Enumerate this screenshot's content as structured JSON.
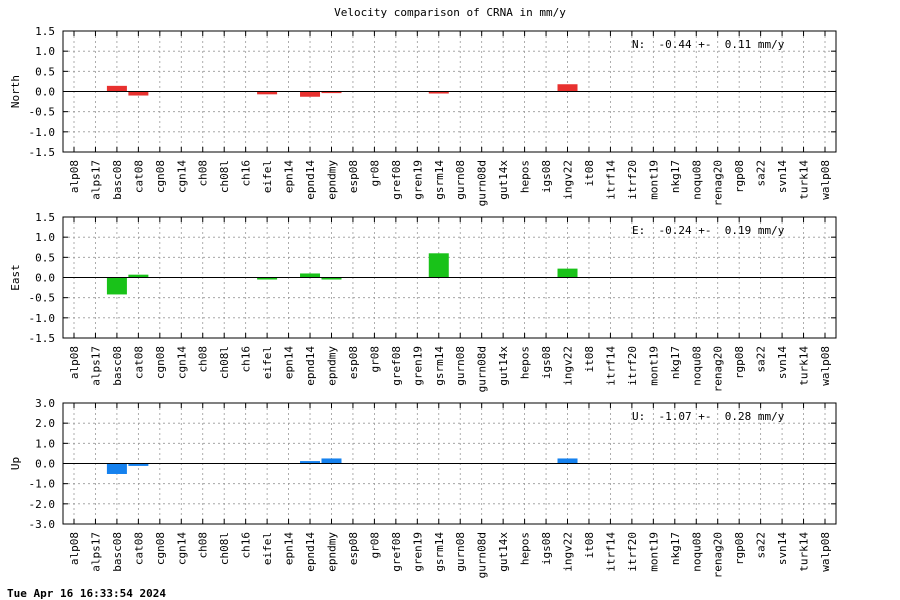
{
  "title": "Velocity comparison of CRNA in mm/y",
  "timestamp": "Tue Apr 16 16:33:54 2024",
  "chart_data": [
    {
      "type": "bar",
      "component": "North",
      "ylabel": "North",
      "ylim": [
        -1.5,
        1.5
      ],
      "yticks": [
        "1.5",
        "1.0",
        "0.5",
        "0.0",
        "-0.5",
        "-1.0",
        "-1.5"
      ],
      "annotation": "N:  -0.44 +-  0.11 mm/y",
      "color": "#e8312f",
      "grid": true,
      "categories": [
        "alp08",
        "alps17",
        "basc08",
        "cat08",
        "cgn08",
        "cgn14",
        "ch08",
        "ch08l",
        "ch16",
        "eifel",
        "epn14",
        "epnd14",
        "epndmy",
        "esp08",
        "gr08",
        "gref08",
        "gren19",
        "gsrm14",
        "gurn08",
        "gurn08d",
        "gut14x",
        "hepos",
        "igs08",
        "ingv22",
        "it08",
        "itrf14",
        "itrf20",
        "mont19",
        "nkg17",
        "noqu08",
        "renag20",
        "rgp08",
        "sa22",
        "svn14",
        "turk14",
        "walp08"
      ],
      "values": [
        0,
        0,
        0.14,
        -0.1,
        0,
        0,
        0,
        0,
        0,
        -0.07,
        0,
        -0.13,
        -0.04,
        0,
        0,
        0,
        0,
        -0.05,
        0,
        0,
        0,
        0,
        0,
        0.18,
        0,
        0,
        0,
        0,
        0,
        0,
        0,
        0,
        0,
        0,
        0,
        0
      ]
    },
    {
      "type": "bar",
      "component": "East",
      "ylabel": "East",
      "ylim": [
        -1.5,
        1.5
      ],
      "yticks": [
        "1.5",
        "1.0",
        "0.5",
        "0.0",
        "-0.5",
        "-1.0",
        "-1.5"
      ],
      "annotation": "E:  -0.24 +-  0.19 mm/y",
      "color": "#19c219",
      "grid": true,
      "categories": [
        "alp08",
        "alps17",
        "basc08",
        "cat08",
        "cgn08",
        "cgn14",
        "ch08",
        "ch08l",
        "ch16",
        "eifel",
        "epn14",
        "epnd14",
        "epndmy",
        "esp08",
        "gr08",
        "gref08",
        "gren19",
        "gsrm14",
        "gurn08",
        "gurn08d",
        "gut14x",
        "hepos",
        "igs08",
        "ingv22",
        "it08",
        "itrf14",
        "itrf20",
        "mont19",
        "nkg17",
        "noqu08",
        "renag20",
        "rgp08",
        "sa22",
        "svn14",
        "turk14",
        "walp08"
      ],
      "values": [
        0,
        0,
        -0.42,
        0.07,
        0,
        0,
        0,
        0,
        0,
        -0.05,
        0,
        0.1,
        -0.05,
        0,
        0,
        0,
        0,
        0.6,
        0,
        0,
        0,
        0,
        0,
        0.22,
        0,
        0,
        0,
        0,
        0,
        0,
        0,
        0,
        0,
        0,
        0,
        0
      ]
    },
    {
      "type": "bar",
      "component": "Up",
      "ylabel": "Up",
      "ylim": [
        -3.0,
        3.0
      ],
      "yticks": [
        "3.0",
        "2.0",
        "1.0",
        "0.0",
        "-1.0",
        "-2.0",
        "-3.0"
      ],
      "annotation": "U:  -1.07 +-  0.28 mm/y",
      "color": "#1581ee",
      "grid": true,
      "categories": [
        "alp08",
        "alps17",
        "basc08",
        "cat08",
        "cgn08",
        "cgn14",
        "ch08",
        "ch08l",
        "ch16",
        "eifel",
        "epn14",
        "epnd14",
        "epndmy",
        "esp08",
        "gr08",
        "gref08",
        "gren19",
        "gsrm14",
        "gurn08",
        "gurn08d",
        "gut14x",
        "hepos",
        "igs08",
        "ingv22",
        "it08",
        "itrf14",
        "itrf20",
        "mont19",
        "nkg17",
        "noqu08",
        "renag20",
        "rgp08",
        "sa22",
        "svn14",
        "turk14",
        "walp08"
      ],
      "values": [
        0,
        0,
        -0.52,
        -0.12,
        0,
        0,
        0,
        0,
        0,
        0,
        0,
        0.12,
        0.25,
        0,
        0,
        0,
        0,
        0,
        0,
        0,
        0,
        0,
        0,
        0.25,
        0,
        0,
        0,
        0,
        0,
        0,
        0,
        0,
        0,
        0,
        0,
        0
      ]
    }
  ]
}
